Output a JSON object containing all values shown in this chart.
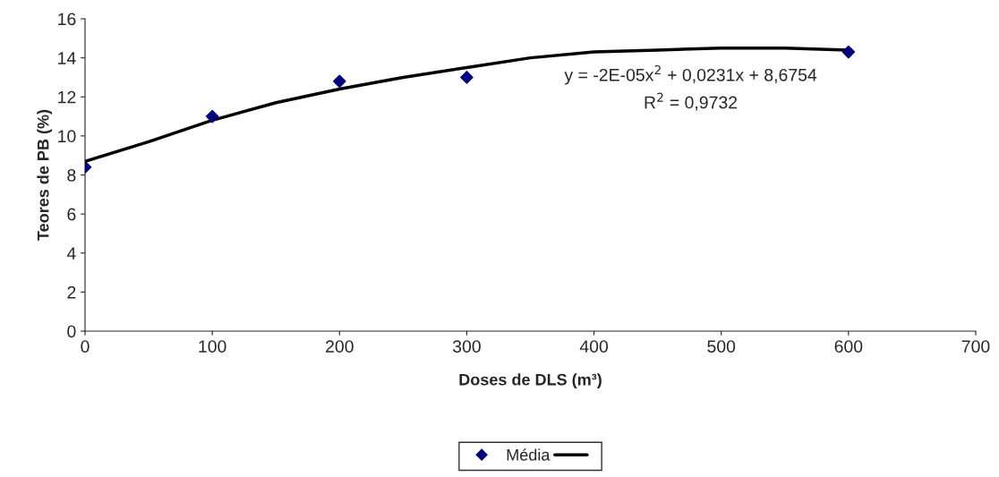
{
  "chart_data": {
    "type": "scatter",
    "xlabel": "Doses de DLS (m³)",
    "ylabel": "Teores de PB (%)",
    "series": [
      {
        "name": "Média",
        "color": "#000080",
        "marker": "diamond",
        "x": [
          0,
          100,
          200,
          300,
          600
        ],
        "values": [
          8.4,
          11.0,
          12.8,
          13.0,
          14.3
        ]
      },
      {
        "type": "line",
        "color": "#000000",
        "line_style": "solid",
        "x": [
          0,
          50,
          100,
          150,
          200,
          250,
          300,
          350,
          400,
          450,
          500,
          550,
          600
        ],
        "values": [
          8.7,
          9.7,
          10.8,
          11.7,
          12.4,
          13.0,
          13.5,
          14.0,
          14.3,
          14.4,
          14.5,
          14.5,
          14.4
        ]
      }
    ],
    "annotations": [
      "y = -2E-05x$^{2}$ + 0,0231x + 8,6754",
      "R$^{2}$ = 0,9732"
    ],
    "xlim": [
      0,
      700
    ],
    "xticks": [
      0,
      100,
      200,
      300,
      400,
      500,
      600,
      700
    ],
    "ylim": [
      0,
      16
    ],
    "yticks": [
      0,
      2,
      4,
      6,
      8,
      10,
      12,
      14,
      16
    ],
    "grid": false,
    "legend": "bottom"
  }
}
